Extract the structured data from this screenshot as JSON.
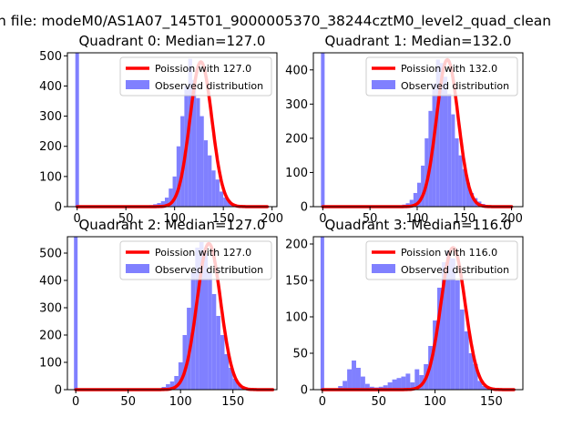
{
  "figure": {
    "suptitle": "n file: modeM0/AS1A07_145T01_9000005370_38244cztM0_level2_quad_clean"
  },
  "colors": {
    "hist": "#8080ff",
    "fit": "#ff0000",
    "axis": "#000000",
    "background": "#ffffff"
  },
  "chart_data": [
    {
      "type": "bar",
      "title": "Quadrant 0: Median=127.0",
      "median": 127.0,
      "xlim": [
        -10,
        205
      ],
      "ylim": [
        0,
        510
      ],
      "xticks": [
        0,
        50,
        100,
        150,
        200
      ],
      "yticks": [
        0,
        100,
        200,
        300,
        400,
        500
      ],
      "legend": {
        "placement": "upper right",
        "entries": [
          "Poission with 127.0",
          "Observed distribution"
        ]
      },
      "zero_bin": {
        "x": 0,
        "value": 510
      },
      "hist": {
        "series_name": "Observed distribution",
        "bin_start": 70,
        "bin_width": 4,
        "values": [
          3,
          5,
          8,
          12,
          18,
          30,
          60,
          100,
          200,
          300,
          400,
          490,
          420,
          360,
          300,
          220,
          170,
          120,
          90,
          50,
          30,
          20,
          10,
          5,
          3,
          2,
          1,
          0,
          0,
          0,
          0,
          0
        ]
      },
      "fit": {
        "series_name": "Poission with 127.0",
        "mean": 127.0,
        "peak": 480,
        "x_range": [
          0,
          195
        ]
      }
    },
    {
      "type": "bar",
      "title": "Quadrant 1: Median=132.0",
      "median": 132.0,
      "xlim": [
        -10,
        212
      ],
      "ylim": [
        0,
        450
      ],
      "xticks": [
        0,
        50,
        100,
        150,
        200
      ],
      "yticks": [
        0,
        100,
        200,
        300,
        400
      ],
      "legend": {
        "placement": "upper right",
        "entries": [
          "Poission with 132.0",
          "Observed distribution"
        ]
      },
      "zero_bin": {
        "x": 0,
        "value": 450
      },
      "hist": {
        "series_name": "Observed distribution",
        "bin_start": 80,
        "bin_width": 4,
        "values": [
          3,
          6,
          10,
          20,
          40,
          70,
          120,
          200,
          280,
          360,
          430,
          420,
          380,
          330,
          270,
          200,
          150,
          110,
          70,
          40,
          25,
          15,
          8,
          4,
          2,
          1,
          1,
          0,
          0,
          0
        ]
      },
      "fit": {
        "series_name": "Poission with 132.0",
        "mean": 132.0,
        "peak": 430,
        "x_range": [
          0,
          200
        ]
      }
    },
    {
      "type": "bar",
      "title": "Quadrant 2: Median=127.0",
      "median": 127.0,
      "xlim": [
        -8,
        192
      ],
      "ylim": [
        0,
        560
      ],
      "xticks": [
        0,
        50,
        100,
        150
      ],
      "yticks": [
        0,
        100,
        200,
        300,
        400,
        500
      ],
      "legend": {
        "placement": "upper right",
        "entries": [
          "Poission with 127.0",
          "Observed distribution"
        ]
      },
      "zero_bin": {
        "x": 0,
        "value": 560
      },
      "hist": {
        "series_name": "Observed distribution",
        "bin_start": 78,
        "bin_width": 4,
        "values": [
          5,
          10,
          20,
          30,
          50,
          100,
          200,
          300,
          430,
          520,
          540,
          500,
          430,
          350,
          270,
          200,
          130,
          80,
          40,
          20,
          10,
          5,
          2,
          1,
          0,
          0,
          0,
          0
        ]
      },
      "fit": {
        "series_name": "Poission with 127.0",
        "mean": 127.0,
        "peak": 535,
        "x_range": [
          0,
          188
        ]
      }
    },
    {
      "type": "bar",
      "title": "Quadrant 3: Median=116.0",
      "median": 116.0,
      "xlim": [
        -8,
        178
      ],
      "ylim": [
        0,
        210
      ],
      "xticks": [
        0,
        50,
        100,
        150
      ],
      "yticks": [
        0,
        50,
        100,
        150,
        200
      ],
      "legend": {
        "placement": "upper right",
        "entries": [
          "Poission with 116.0",
          "Observed distribution"
        ]
      },
      "zero_bin": {
        "x": 0,
        "value": 210
      },
      "hist": {
        "series_name": "Observed distribution",
        "bin_start": 14,
        "bin_width": 4,
        "values": [
          5,
          12,
          28,
          40,
          30,
          18,
          8,
          4,
          3,
          4,
          6,
          10,
          14,
          16,
          18,
          22,
          10,
          28,
          20,
          35,
          60,
          95,
          140,
          175,
          190,
          180,
          150,
          110,
          80,
          50,
          35,
          12,
          5,
          2,
          1,
          1,
          0,
          0,
          0
        ]
      },
      "fit": {
        "series_name": "Poission with 116.0",
        "mean": 116.0,
        "peak": 195,
        "x_range": [
          0,
          170
        ]
      }
    }
  ]
}
